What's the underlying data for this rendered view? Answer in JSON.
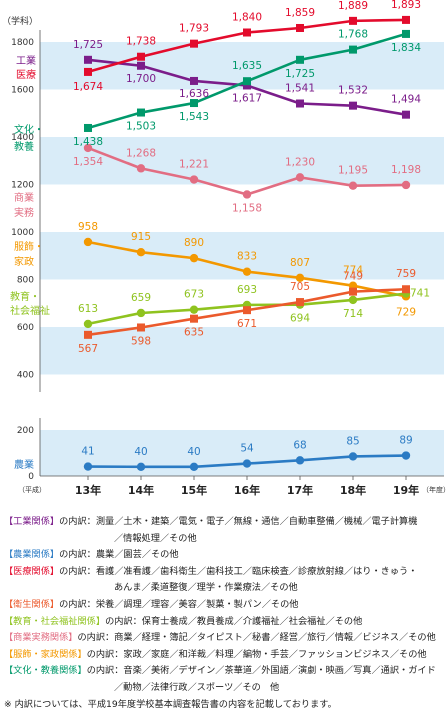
{
  "chart_data": {
    "type": "line",
    "ylabel": "（学科）",
    "x_prefix": "（平成）",
    "x_suffix": "（年度）",
    "categories": [
      "13年",
      "14年",
      "15年",
      "16年",
      "17年",
      "18年",
      "19年"
    ],
    "yticks_upper": [
      400,
      600,
      800,
      1000,
      1200,
      1400,
      1600,
      1800
    ],
    "yticks_lower": [
      0,
      200
    ],
    "axis_break": true,
    "bands": [
      [
        1600,
        1800
      ],
      [
        1200,
        1400
      ],
      [
        800,
        1000
      ],
      [
        400,
        600
      ],
      [
        0,
        200
      ]
    ],
    "series": [
      {
        "name": "工業",
        "color": "#7b1d8a",
        "marker": "square",
        "values": [
          1725,
          1700,
          1636,
          1617,
          1541,
          1532,
          1494
        ]
      },
      {
        "name": "医療",
        "color": "#e30b2c",
        "marker": "square",
        "values": [
          1674,
          1738,
          1793,
          1840,
          1859,
          1889,
          1893
        ]
      },
      {
        "name": "文化・教養",
        "color": "#00996b",
        "marker": "square",
        "values": [
          1438,
          1503,
          1543,
          1635,
          1725,
          1768,
          1834
        ]
      },
      {
        "name": "商業実務",
        "color": "#e26d82",
        "marker": "circle",
        "values": [
          1354,
          1268,
          1221,
          1158,
          1230,
          1195,
          1198
        ]
      },
      {
        "name": "服飾・家政",
        "color": "#f39800",
        "marker": "circle",
        "values": [
          958,
          915,
          890,
          833,
          807,
          774,
          729
        ]
      },
      {
        "name": "教育・社会福祉",
        "color": "#8fc31f",
        "marker": "circle",
        "values": [
          613,
          659,
          673,
          693,
          694,
          714,
          741
        ]
      },
      {
        "name": "衛生",
        "color": "#eb5a2c",
        "marker": "square",
        "values": [
          567,
          598,
          635,
          671,
          705,
          749,
          759
        ]
      },
      {
        "name": "農業",
        "color": "#2b7bc4",
        "marker": "circle",
        "values": [
          41,
          40,
          40,
          54,
          68,
          85,
          89
        ]
      }
    ]
  },
  "notes": [
    {
      "category": "【工業関係】",
      "color": "#7b1d8a",
      "lines": [
        "の内訳：測量／土木・建築／電気・電子／無線・通信／自動車整備／機械／電子計算機",
        "／情報処理／その他"
      ]
    },
    {
      "category": "【農業関係】",
      "color": "#2b7bc4",
      "lines": [
        "の内訳：農業／園芸／その他"
      ]
    },
    {
      "category": "【医療関係】",
      "color": "#e30b2c",
      "lines": [
        "の内訳：看護／准看護／歯科衛生／歯科技工／臨床検査／診療放射線／はり・きゅう・",
        "あんま／柔道整復／理学・作業療法／その他"
      ]
    },
    {
      "category": "【衛生関係】",
      "color": "#eb5a2c",
      "lines": [
        "の内訳：栄養／調理／理容／美容／製菓・製パン／その他"
      ]
    },
    {
      "category": "【教育・社会福祉関係】",
      "color": "#8fc31f",
      "lines": [
        "の内訳：保育士養成／教員養成／介護福祉／社会福祉／その他"
      ]
    },
    {
      "category": "【商業実務関係】",
      "color": "#e26d82",
      "lines": [
        "の内訳：商業／経理・簿記／タイピスト／秘書／経営／旅行／情報／ビジネス／その他"
      ]
    },
    {
      "category": "【服飾・家政関係】",
      "color": "#f39800",
      "lines": [
        "の内訳：家政／家庭／和洋裁／料理／編物・手芸／ファッションビジネス／その他"
      ]
    },
    {
      "category": "【文化・教養関係】",
      "color": "#00996b",
      "lines": [
        "の内訳：音楽／美術／デザイン／茶華道／外国語／演劇・映画／写真／通訳・ガイド",
        "／動物／法律行政／スポーツ／その　他"
      ]
    }
  ],
  "footnote": "※ 内訳については、平成19年度学校基本調査報告書の内容を記載しております。"
}
